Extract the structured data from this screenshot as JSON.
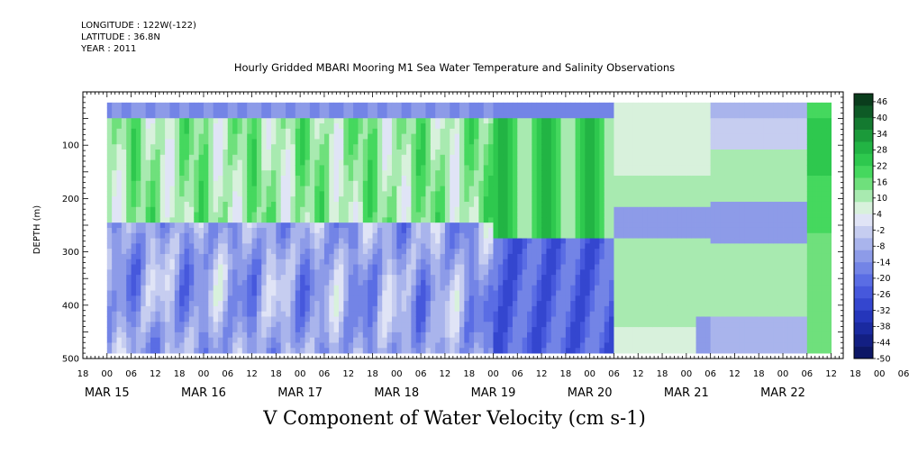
{
  "header": {
    "longitude": "LONGITUDE : 122W(-122)",
    "latitude": "LATITUDE : 36.8N",
    "year": "YEAR : 2011"
  },
  "chart_data": {
    "type": "heatmap",
    "title": "Hourly Gridded MBARI Mooring M1 Sea Water Temperature and Salinity Observations",
    "xlabel": "V Component of Water Velocity (cm s-1)",
    "ylabel": "DEPTH (m)",
    "ylim": [
      500,
      0
    ],
    "y_ticks": [
      100,
      200,
      300,
      400,
      500
    ],
    "x_hour_ticks": [
      "18",
      "00",
      "06",
      "12",
      "18",
      "00",
      "06",
      "12",
      "18",
      "00",
      "06",
      "12",
      "18",
      "00",
      "06",
      "12",
      "18",
      "00",
      "06",
      "12",
      "18",
      "00",
      "06",
      "12",
      "18",
      "00",
      "06",
      "12",
      "18",
      "00",
      "06",
      "12",
      "18",
      "00",
      "06",
      "12"
    ],
    "x_day_labels": [
      "MAR 15",
      "MAR 16",
      "MAR 17",
      "MAR 18",
      "MAR 19",
      "MAR 20",
      "MAR 21",
      "MAR 22"
    ],
    "x_range": [
      "2011-03-14T18:00",
      "2011-03-22T15:00"
    ],
    "data_extent": [
      "2011-03-15T00:00",
      "2011-03-22T12:00"
    ],
    "depth_extent": [
      20,
      490
    ],
    "colorbar": {
      "labels": [
        "46",
        "40",
        "34",
        "28",
        "22",
        "16",
        "10",
        "4",
        "-2",
        "-8",
        "-14",
        "-20",
        "-26",
        "-32",
        "-38",
        "-44",
        "-50"
      ],
      "range": [
        -50,
        49
      ],
      "colors": [
        "#0a3d1c",
        "#0e5a26",
        "#147a30",
        "#1b9a3a",
        "#22b444",
        "#2ec84e",
        "#45d85e",
        "#6fe07c",
        "#a8eab0",
        "#d8f1dc",
        "#e0e4f6",
        "#c6cdf0",
        "#a9b4ec",
        "#8d9be8",
        "#7384e6",
        "#5a6de4",
        "#4658dc",
        "#3446cf",
        "#2536bb",
        "#1a2aa0",
        "#131f83",
        "#0d1766"
      ]
    },
    "regimes": [
      {
        "period": "MAR 15 00 - MAR 19 00",
        "surface_value": -14,
        "upper_value": 12,
        "lower_value": -10
      },
      {
        "period": "MAR 19 00 - MAR 20 06",
        "surface_value": -16,
        "upper_value": 20,
        "lower_value": -22
      },
      {
        "period": "MAR 20 06 - MAR 21 06",
        "surface_value": 6,
        "upper_value": 12,
        "band_250m_value": -12,
        "lower_value": 8
      },
      {
        "period": "MAR 21 06 - MAR 22 06",
        "surface_value": -6,
        "upper_value": 10,
        "band_250m_value": -10,
        "lower_value": -8
      },
      {
        "period": "MAR 22 06 - MAR 22 12",
        "surface_value": 20,
        "upper_value": 26,
        "lower_value": 14
      }
    ]
  }
}
